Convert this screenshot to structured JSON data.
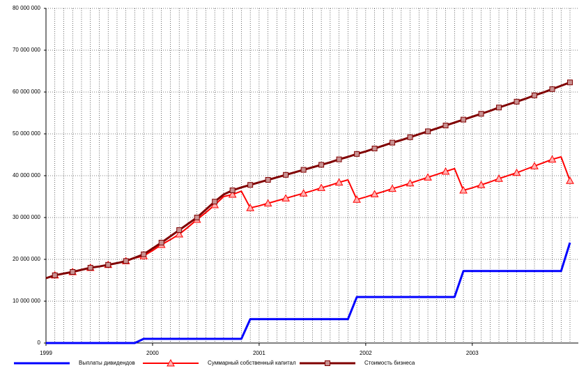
{
  "chart_data": {
    "type": "line",
    "categories": [
      "1999",
      null,
      null,
      null,
      null,
      null,
      null,
      null,
      null,
      null,
      null,
      null,
      "2000",
      null,
      null,
      null,
      null,
      null,
      null,
      null,
      null,
      null,
      null,
      null,
      "2001",
      null,
      null,
      null,
      null,
      null,
      null,
      null,
      null,
      null,
      null,
      null,
      "2002",
      null,
      null,
      null,
      null,
      null,
      null,
      null,
      null,
      null,
      null,
      null,
      "2003",
      null,
      null,
      null,
      null,
      null,
      null,
      null,
      null,
      null,
      null,
      null
    ],
    "series": [
      {
        "name": "Выплаты дивидендов",
        "color": "#0000ff",
        "values": [
          0,
          0,
          0,
          0,
          0,
          0,
          0,
          0,
          0,
          0,
          0,
          1000000,
          1000000,
          1000000,
          1000000,
          1000000,
          1000000,
          1000000,
          1000000,
          1000000,
          1000000,
          1000000,
          1000000,
          5700000,
          5700000,
          5700000,
          5700000,
          5700000,
          5700000,
          5700000,
          5700000,
          5700000,
          5700000,
          5700000,
          5700000,
          11000000,
          11000000,
          11000000,
          11000000,
          11000000,
          11000000,
          11000000,
          11000000,
          11000000,
          11000000,
          11000000,
          11000000,
          17200000,
          17200000,
          17200000,
          17200000,
          17200000,
          17200000,
          17200000,
          17200000,
          17200000,
          17200000,
          17200000,
          17200000,
          24000000
        ]
      },
      {
        "name": "Суммарный собственный капитал",
        "color": "#ff0000",
        "values": [
          15500000,
          16200000,
          16600000,
          17000000,
          17500000,
          18000000,
          18300000,
          18700000,
          19100000,
          19600000,
          20300000,
          20800000,
          22100000,
          23500000,
          24700000,
          26000000,
          27700000,
          29500000,
          31200000,
          33000000,
          35000000,
          35500000,
          36300000,
          32300000,
          32800000,
          33400000,
          34000000,
          34600000,
          35200000,
          35800000,
          36400000,
          37100000,
          37700000,
          38400000,
          39000000,
          34300000,
          34900000,
          35600000,
          36200000,
          36900000,
          37500000,
          38200000,
          38900000,
          39600000,
          40300000,
          41000000,
          41700000,
          36500000,
          37100000,
          37800000,
          38500000,
          39300000,
          40000000,
          40700000,
          41500000,
          42300000,
          43100000,
          43900000,
          44500000,
          38800000
        ]
      },
      {
        "name": "Стоимость бизнеса",
        "color": "#800000",
        "values": [
          15500000,
          16200000,
          16600000,
          17000000,
          17500000,
          18000000,
          18300000,
          18700000,
          19100000,
          19600000,
          20400000,
          21200000,
          22600000,
          24000000,
          25500000,
          27000000,
          28500000,
          30000000,
          31900000,
          33800000,
          35500000,
          36500000,
          37200000,
          37800000,
          38400000,
          39000000,
          39600000,
          40200000,
          40800000,
          41400000,
          42000000,
          42600000,
          43200000,
          43900000,
          44500000,
          45200000,
          45800000,
          46500000,
          47200000,
          47900000,
          48500000,
          49200000,
          49900000,
          50600000,
          51300000,
          52000000,
          52700000,
          53400000,
          54100000,
          54800000,
          55500000,
          56300000,
          57000000,
          57700000,
          58400000,
          59200000,
          59900000,
          60700000,
          61500000,
          62300000
        ]
      }
    ],
    "ylim": [
      0,
      80000000
    ],
    "yticks": [
      0,
      {
        "value": 10000000,
        "label": "10 000 000"
      },
      {
        "value": 20000000,
        "label": "20 000 000"
      },
      {
        "value": 30000000,
        "label": "30 000 000"
      },
      {
        "value": 40000000,
        "label": "40 000 000"
      },
      {
        "value": 50000000,
        "label": "50 000 000"
      },
      {
        "value": 60000000,
        "label": "60 000 000"
      },
      {
        "value": 70000000,
        "label": "70 000 000"
      },
      {
        "value": 80000000,
        "label": "80 000 000"
      }
    ],
    "grid": true,
    "legend": "bottom"
  }
}
